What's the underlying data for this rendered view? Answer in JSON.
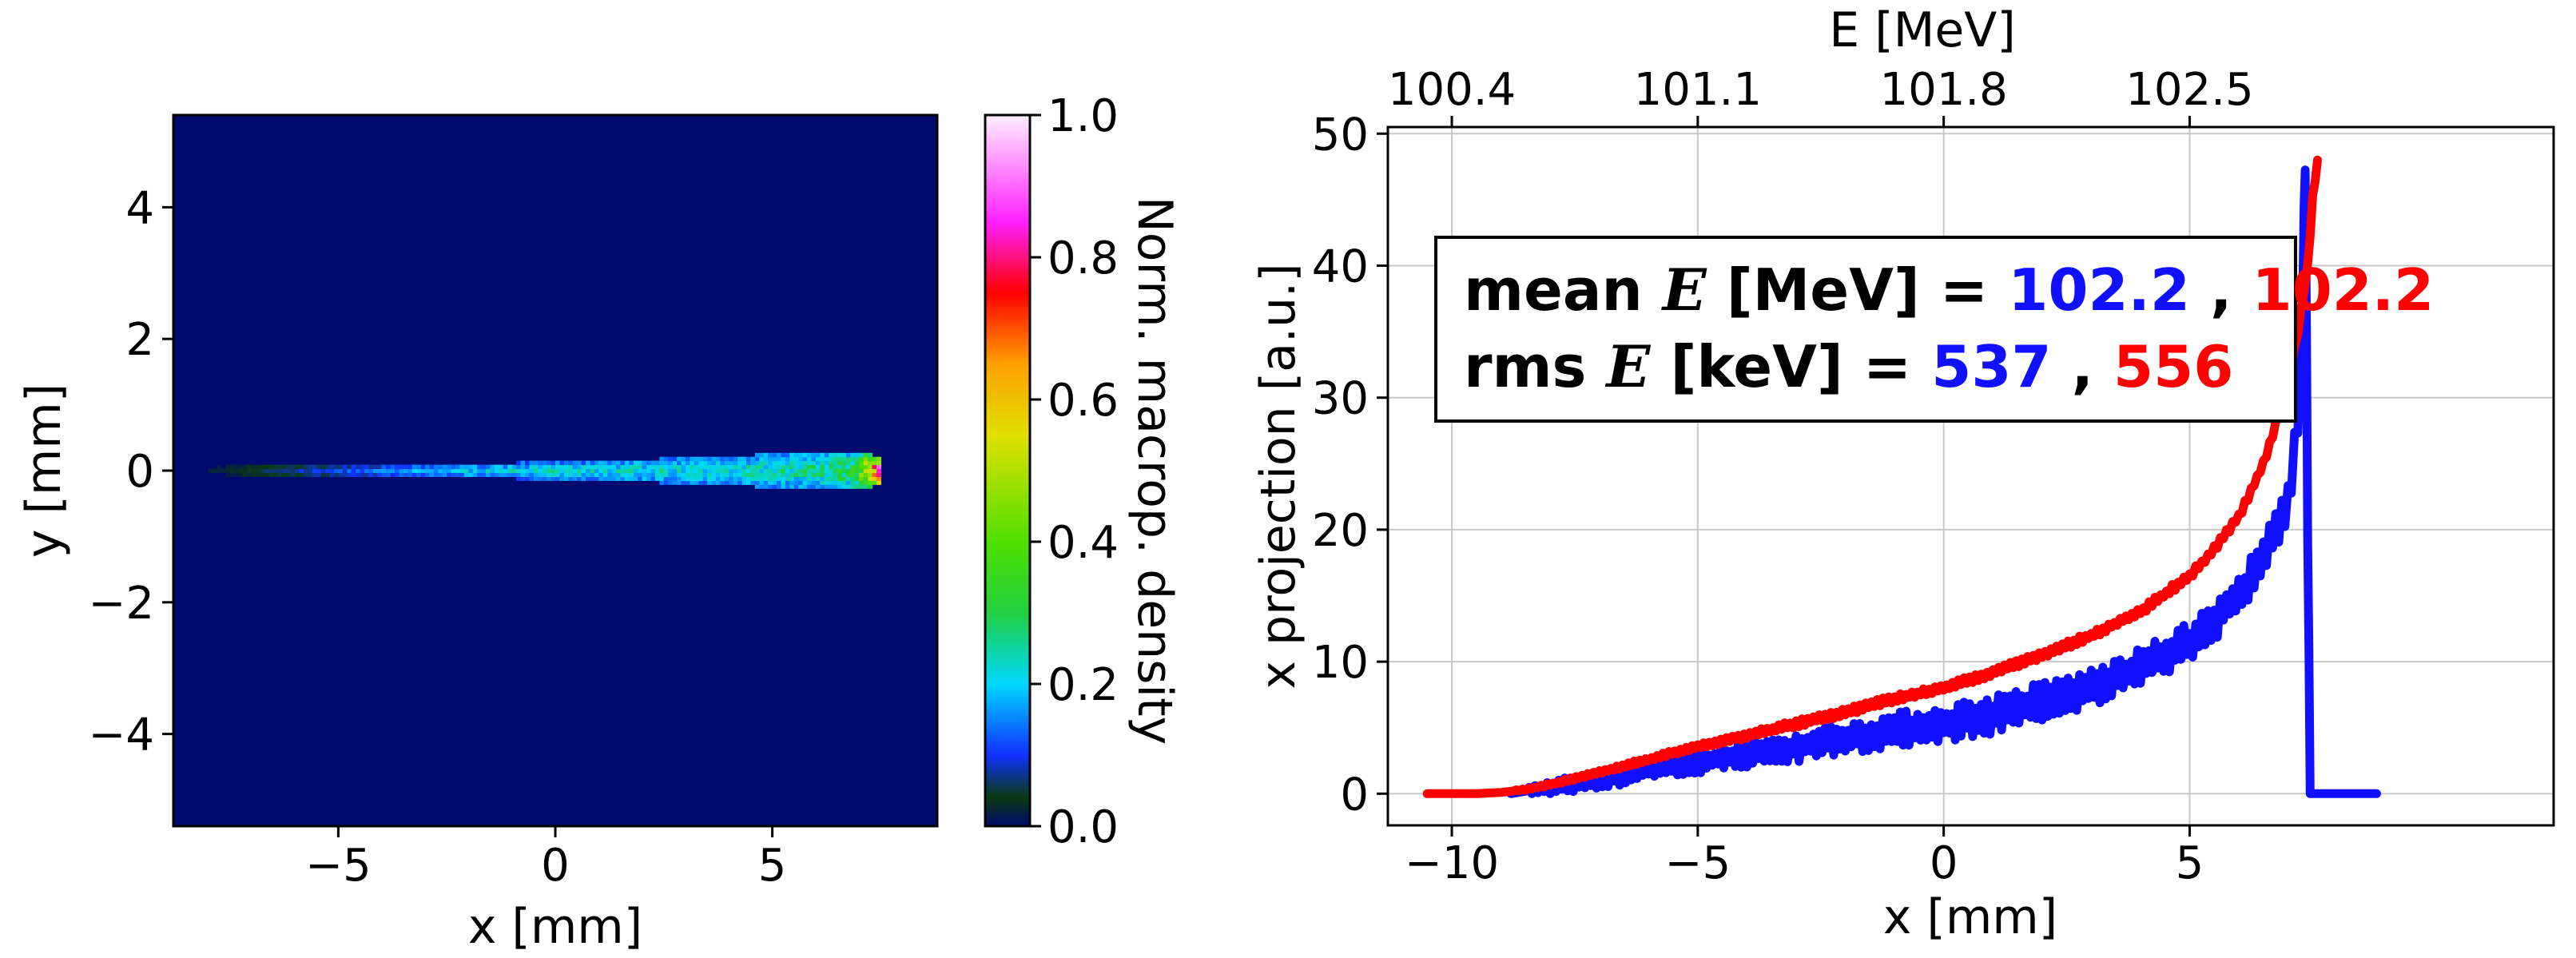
{
  "chart_data": [
    {
      "type": "heatmap",
      "xlabel": "x [mm]",
      "ylabel": "y [mm]",
      "xlim": [
        -8.8,
        8.8
      ],
      "ylim": [
        -5.4,
        5.4
      ],
      "xticks": [
        -5,
        0,
        5
      ],
      "yticks": [
        -4,
        -2,
        0,
        2,
        4
      ],
      "xtick_labels": [
        "−5",
        "0",
        "5"
      ],
      "ytick_labels": [
        "−4",
        "−2",
        "0",
        "2",
        "4"
      ],
      "colorbar": {
        "label": "Norm. macrop. density",
        "range": [
          0,
          1
        ],
        "ticks": [
          0,
          0.2,
          0.4,
          0.6,
          0.8,
          1.0
        ],
        "tick_labels": [
          "0.0",
          "0.2",
          "0.4",
          "0.6",
          "0.8",
          "1.0"
        ],
        "colormap_stops": [
          {
            "v": 0.0,
            "color": "#000a6e"
          },
          {
            "v": 0.04,
            "color": "#0a3a10"
          },
          {
            "v": 0.1,
            "color": "#1030ff"
          },
          {
            "v": 0.2,
            "color": "#00d8ff"
          },
          {
            "v": 0.3,
            "color": "#20d040"
          },
          {
            "v": 0.4,
            "color": "#50e000"
          },
          {
            "v": 0.55,
            "color": "#e0e000"
          },
          {
            "v": 0.65,
            "color": "#ffa000"
          },
          {
            "v": 0.75,
            "color": "#ff0000"
          },
          {
            "v": 0.85,
            "color": "#ff20ff"
          },
          {
            "v": 1.0,
            "color": "#fff0ff"
          }
        ]
      },
      "beam": {
        "y_center": 0,
        "profile": [
          {
            "x": -8.8,
            "half_width": 0.02,
            "density": 0.0
          },
          {
            "x": -7.5,
            "half_width": 0.05,
            "density": 0.03
          },
          {
            "x": -6.0,
            "half_width": 0.06,
            "density": 0.08
          },
          {
            "x": -4.0,
            "half_width": 0.07,
            "density": 0.14
          },
          {
            "x": -2.0,
            "half_width": 0.08,
            "density": 0.2
          },
          {
            "x": 0.0,
            "half_width": 0.1,
            "density": 0.22
          },
          {
            "x": 2.0,
            "half_width": 0.14,
            "density": 0.22
          },
          {
            "x": 4.0,
            "half_width": 0.2,
            "density": 0.22
          },
          {
            "x": 6.0,
            "half_width": 0.24,
            "density": 0.25
          },
          {
            "x": 6.8,
            "half_width": 0.24,
            "density": 0.3
          },
          {
            "x": 7.2,
            "half_width": 0.22,
            "density": 0.55
          },
          {
            "x": 7.4,
            "half_width": 0.15,
            "density": 0.8
          }
        ]
      }
    },
    {
      "type": "line",
      "xlabel": "x [mm]",
      "ylabel": "x projection [a.u.]",
      "top_xlabel": "E [MeV]",
      "xlim": [
        -11.3,
        12.4
      ],
      "ylim": [
        -2.4,
        50.5
      ],
      "xticks": [
        -10,
        -5,
        0,
        5
      ],
      "xtick_labels": [
        "−10",
        "−5",
        "0",
        "5"
      ],
      "yticks": [
        0,
        10,
        20,
        30,
        40,
        50
      ],
      "ytick_labels": [
        "0",
        "10",
        "20",
        "30",
        "40",
        "50"
      ],
      "top_ticks": [
        {
          "x": -10,
          "label": "100.4"
        },
        {
          "x": -5,
          "label": "101.1"
        },
        {
          "x": 0,
          "label": "101.8"
        },
        {
          "x": 5,
          "label": "102.5"
        }
      ],
      "grid": true,
      "series": [
        {
          "name": "blue",
          "color": "#1010ff",
          "x": [
            -8.8,
            -8.0,
            -7.0,
            -6.0,
            -5.0,
            -4.0,
            -3.0,
            -2.0,
            -1.0,
            0.0,
            1.0,
            2.0,
            3.0,
            4.0,
            5.0,
            5.5,
            6.0,
            6.5,
            7.0,
            7.2,
            7.3,
            7.35,
            7.4,
            7.45,
            8.0,
            8.8
          ],
          "y": [
            0,
            0.5,
            1.0,
            1.8,
            2.4,
            3.0,
            3.5,
            4.2,
            4.8,
            5.3,
            6.0,
            7.0,
            8.0,
            9.5,
            11.5,
            13.0,
            15.0,
            18.0,
            22.0,
            28.0,
            38.0,
            48.0,
            20.0,
            0,
            0,
            0
          ],
          "jitter": 1.5
        },
        {
          "name": "red",
          "color": "#ff0000",
          "x": [
            -10.5,
            -9.5,
            -9.0,
            -8.5,
            -8.0,
            -7.0,
            -6.0,
            -5.0,
            -4.0,
            -3.0,
            -2.0,
            -1.0,
            0.0,
            1.0,
            2.0,
            3.0,
            4.0,
            5.0,
            5.5,
            6.0,
            6.5,
            7.0,
            7.2,
            7.4,
            7.5,
            7.6
          ],
          "y": [
            0,
            0,
            0.1,
            0.3,
            0.7,
            1.6,
            2.6,
            3.6,
            4.4,
            5.3,
            6.2,
            7.2,
            8.0,
            9.2,
            10.5,
            12.0,
            13.8,
            16.5,
            18.5,
            21.0,
            25.0,
            31.0,
            35.0,
            40.0,
            45.0,
            48.0
          ],
          "jitter": 0.3
        }
      ],
      "annotation": {
        "line1_prefix": "mean",
        "line1_var": "E",
        "line1_unit": "[MeV] =",
        "line1_v1": "102.2",
        "line1_sep": ",",
        "line1_v2": "102.2",
        "line2_prefix": "rms",
        "line2_var": "E",
        "line2_unit": "[keV] =",
        "line2_v1": "537",
        "line2_sep": ",",
        "line2_v2": "556",
        "v1_color": "#1010ff",
        "v2_color": "#ff0000"
      }
    }
  ]
}
